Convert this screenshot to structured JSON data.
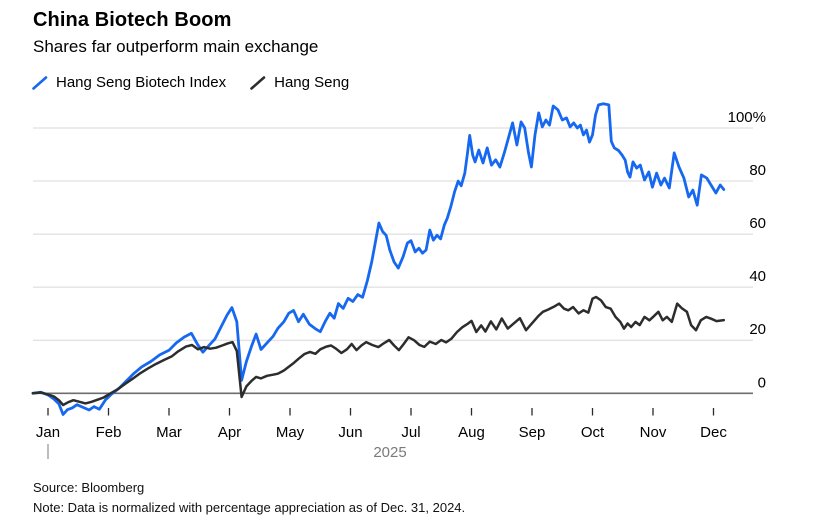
{
  "header": {
    "title": "China Biotech Boom",
    "subtitle": "Shares far outperform main exchange"
  },
  "legend": [
    {
      "label": "Hang Seng Biotech Index",
      "color": "#1668f0"
    },
    {
      "label": "Hang Seng",
      "color": "#2d2d2d"
    }
  ],
  "footer": {
    "source": "Source: Bloomberg",
    "note": "Note: Data is normalized with percentage appreciation as of Dec. 31, 2024."
  },
  "colors": {
    "gridline": "#d8d8d8",
    "zero_line": "#6e6e6e",
    "tick": "#2b2b2b",
    "axis_text": "#000000",
    "year_text": "#7a7a7a",
    "year_tick": "#999999"
  },
  "chart_data": {
    "type": "line",
    "title": "China Biotech Boom",
    "subtitle": "Shares far outperform main exchange",
    "x_unit": "months since Jan 1, 2025 (0 = Jan 1, 11 = Dec 1)",
    "x_tick_labels": [
      "Jan",
      "Feb",
      "Mar",
      "Apr",
      "May",
      "Jun",
      "Jul",
      "Aug",
      "Sep",
      "Oct",
      "Nov",
      "Dec"
    ],
    "year_label": "2025",
    "y_ticks": [
      0,
      20,
      40,
      60,
      80,
      100
    ],
    "y_tick_labels": [
      "0",
      "20",
      "40",
      "60",
      "80",
      "100%"
    ],
    "ylim": [
      -12,
      112
    ],
    "grid": "horizontal",
    "legend_position": "top-left",
    "series": [
      {
        "name": "Hang Seng Biotech Index",
        "color": "#1668f0",
        "points": [
          [
            -0.25,
            0
          ],
          [
            -0.12,
            0.4
          ],
          [
            0,
            -0.6
          ],
          [
            0.1,
            -2.2
          ],
          [
            0.18,
            -4
          ],
          [
            0.25,
            -8
          ],
          [
            0.32,
            -6.2
          ],
          [
            0.4,
            -5.5
          ],
          [
            0.48,
            -4.3
          ],
          [
            0.57,
            -5.2
          ],
          [
            0.68,
            -6.3
          ],
          [
            0.76,
            -5
          ],
          [
            0.85,
            -6
          ],
          [
            0.95,
            -2.5
          ],
          [
            1.05,
            -0.3
          ],
          [
            1.18,
            2
          ],
          [
            1.3,
            4.8
          ],
          [
            1.42,
            7.5
          ],
          [
            1.55,
            10
          ],
          [
            1.7,
            12
          ],
          [
            1.85,
            14.5
          ],
          [
            2.0,
            16.2
          ],
          [
            2.12,
            19
          ],
          [
            2.25,
            21.2
          ],
          [
            2.37,
            22.6
          ],
          [
            2.47,
            18.5
          ],
          [
            2.56,
            15.5
          ],
          [
            2.66,
            18
          ],
          [
            2.76,
            20.5
          ],
          [
            2.86,
            25
          ],
          [
            2.96,
            29.5
          ],
          [
            3.04,
            32.3
          ],
          [
            3.12,
            27
          ],
          [
            3.2,
            4.9
          ],
          [
            3.28,
            12
          ],
          [
            3.36,
            17.5
          ],
          [
            3.44,
            22.3
          ],
          [
            3.52,
            16.5
          ],
          [
            3.62,
            19
          ],
          [
            3.72,
            21.5
          ],
          [
            3.8,
            24.5
          ],
          [
            3.9,
            27
          ],
          [
            3.98,
            30.2
          ],
          [
            4.06,
            31.2
          ],
          [
            4.14,
            27
          ],
          [
            4.22,
            29.8
          ],
          [
            4.32,
            26
          ],
          [
            4.42,
            24.3
          ],
          [
            4.5,
            23.2
          ],
          [
            4.58,
            27
          ],
          [
            4.66,
            30.2
          ],
          [
            4.73,
            28.3
          ],
          [
            4.8,
            33.8
          ],
          [
            4.88,
            32
          ],
          [
            4.96,
            35.8
          ],
          [
            5.04,
            34.6
          ],
          [
            5.12,
            37.2
          ],
          [
            5.2,
            36.2
          ],
          [
            5.28,
            42.5
          ],
          [
            5.35,
            49.5
          ],
          [
            5.42,
            58
          ],
          [
            5.47,
            64.2
          ],
          [
            5.53,
            61
          ],
          [
            5.59,
            59.5
          ],
          [
            5.65,
            54
          ],
          [
            5.72,
            49.5
          ],
          [
            5.79,
            47.2
          ],
          [
            5.87,
            51.5
          ],
          [
            5.94,
            56.6
          ],
          [
            6.0,
            57.5
          ],
          [
            6.07,
            53.3
          ],
          [
            6.13,
            54.7
          ],
          [
            6.19,
            52.8
          ],
          [
            6.25,
            54
          ],
          [
            6.31,
            61.5
          ],
          [
            6.37,
            57.7
          ],
          [
            6.43,
            59.6
          ],
          [
            6.49,
            58.2
          ],
          [
            6.55,
            63.4
          ],
          [
            6.6,
            66
          ],
          [
            6.66,
            70.5
          ],
          [
            6.72,
            76
          ],
          [
            6.78,
            80
          ],
          [
            6.83,
            78.2
          ],
          [
            6.89,
            83
          ],
          [
            6.93,
            90
          ],
          [
            6.97,
            97.2
          ],
          [
            7.02,
            89.8
          ],
          [
            7.06,
            87.2
          ],
          [
            7.12,
            91.7
          ],
          [
            7.19,
            86.8
          ],
          [
            7.26,
            92.5
          ],
          [
            7.33,
            86
          ],
          [
            7.4,
            88
          ],
          [
            7.47,
            85.3
          ],
          [
            7.54,
            90.5
          ],
          [
            7.61,
            96.2
          ],
          [
            7.68,
            101.9
          ],
          [
            7.75,
            93.6
          ],
          [
            7.82,
            102.3
          ],
          [
            7.88,
            100
          ],
          [
            7.94,
            90.9
          ],
          [
            7.99,
            85.3
          ],
          [
            8.05,
            97.4
          ],
          [
            8.11,
            105.7
          ],
          [
            8.17,
            100.4
          ],
          [
            8.23,
            103
          ],
          [
            8.29,
            101.1
          ],
          [
            8.35,
            108.3
          ],
          [
            8.43,
            106.8
          ],
          [
            8.5,
            103
          ],
          [
            8.57,
            103.8
          ],
          [
            8.63,
            100.4
          ],
          [
            8.69,
            101.9
          ],
          [
            8.75,
            100
          ],
          [
            8.8,
            101.1
          ],
          [
            8.85,
            97.4
          ],
          [
            8.9,
            99.2
          ],
          [
            8.95,
            94.7
          ],
          [
            9.0,
            97.4
          ],
          [
            9.05,
            104.9
          ],
          [
            9.1,
            108.7
          ],
          [
            9.18,
            109.1
          ],
          [
            9.27,
            108.7
          ],
          [
            9.31,
            95
          ],
          [
            9.36,
            92.5
          ],
          [
            9.43,
            91.5
          ],
          [
            9.49,
            89.8
          ],
          [
            9.54,
            87.9
          ],
          [
            9.58,
            83.4
          ],
          [
            9.62,
            81.5
          ],
          [
            9.67,
            87.2
          ],
          [
            9.73,
            84.9
          ],
          [
            9.79,
            86
          ],
          [
            9.86,
            80.4
          ],
          [
            9.93,
            83.4
          ],
          [
            9.99,
            77.7
          ],
          [
            10.06,
            83
          ],
          [
            10.13,
            78.5
          ],
          [
            10.19,
            81.1
          ],
          [
            10.27,
            77.4
          ],
          [
            10.35,
            90.6
          ],
          [
            10.43,
            85.3
          ],
          [
            10.51,
            81.1
          ],
          [
            10.59,
            74
          ],
          [
            10.66,
            76.6
          ],
          [
            10.73,
            70.9
          ],
          [
            10.8,
            82.3
          ],
          [
            10.89,
            81.1
          ],
          [
            10.97,
            78.1
          ],
          [
            11.04,
            75.5
          ],
          [
            11.11,
            78.5
          ],
          [
            11.17,
            76.8
          ]
        ]
      },
      {
        "name": "Hang Seng",
        "color": "#2d2d2d",
        "points": [
          [
            -0.25,
            0
          ],
          [
            -0.12,
            0.3
          ],
          [
            0,
            -0.4
          ],
          [
            0.1,
            -1.2
          ],
          [
            0.18,
            -2.6
          ],
          [
            0.25,
            -4.4
          ],
          [
            0.33,
            -3.4
          ],
          [
            0.42,
            -2.6
          ],
          [
            0.52,
            -3.2
          ],
          [
            0.62,
            -3.8
          ],
          [
            0.72,
            -3.2
          ],
          [
            0.82,
            -2.4
          ],
          [
            0.92,
            -1.6
          ],
          [
            1.02,
            -0.2
          ],
          [
            1.15,
            1.5
          ],
          [
            1.28,
            3.6
          ],
          [
            1.4,
            5.5
          ],
          [
            1.52,
            7.5
          ],
          [
            1.65,
            9.3
          ],
          [
            1.78,
            11
          ],
          [
            1.92,
            12.6
          ],
          [
            2.05,
            14
          ],
          [
            2.15,
            15.8
          ],
          [
            2.28,
            17.6
          ],
          [
            2.38,
            18.2
          ],
          [
            2.48,
            16.6
          ],
          [
            2.58,
            17.4
          ],
          [
            2.68,
            16.8
          ],
          [
            2.78,
            17.2
          ],
          [
            2.88,
            18
          ],
          [
            2.97,
            18.8
          ],
          [
            3.05,
            19.3
          ],
          [
            3.12,
            16
          ],
          [
            3.2,
            -1.4
          ],
          [
            3.28,
            2.6
          ],
          [
            3.36,
            4.6
          ],
          [
            3.44,
            6.2
          ],
          [
            3.52,
            5.6
          ],
          [
            3.62,
            6.6
          ],
          [
            3.72,
            7
          ],
          [
            3.8,
            7.4
          ],
          [
            3.9,
            8.6
          ],
          [
            3.98,
            10
          ],
          [
            4.06,
            11.4
          ],
          [
            4.15,
            13.2
          ],
          [
            4.24,
            14.8
          ],
          [
            4.33,
            15.6
          ],
          [
            4.42,
            14.9
          ],
          [
            4.5,
            16.6
          ],
          [
            4.6,
            17.6
          ],
          [
            4.68,
            18
          ],
          [
            4.76,
            16.8
          ],
          [
            4.85,
            15.2
          ],
          [
            4.94,
            16.6
          ],
          [
            5.02,
            18.6
          ],
          [
            5.1,
            16.3
          ],
          [
            5.18,
            18
          ],
          [
            5.26,
            19.3
          ],
          [
            5.36,
            18.2
          ],
          [
            5.46,
            17.4
          ],
          [
            5.56,
            19
          ],
          [
            5.64,
            20.1
          ],
          [
            5.72,
            18
          ],
          [
            5.8,
            16.3
          ],
          [
            5.88,
            18.6
          ],
          [
            5.96,
            21.1
          ],
          [
            6.05,
            20
          ],
          [
            6.14,
            18.2
          ],
          [
            6.22,
            17.5
          ],
          [
            6.31,
            19.5
          ],
          [
            6.41,
            18.6
          ],
          [
            6.5,
            20.1
          ],
          [
            6.58,
            19.2
          ],
          [
            6.67,
            20.6
          ],
          [
            6.76,
            23.1
          ],
          [
            6.85,
            24.9
          ],
          [
            6.93,
            26.1
          ],
          [
            7.0,
            27.3
          ],
          [
            7.08,
            23.1
          ],
          [
            7.16,
            25.6
          ],
          [
            7.23,
            23.3
          ],
          [
            7.32,
            27.1
          ],
          [
            7.41,
            24.1
          ],
          [
            7.5,
            28.2
          ],
          [
            7.6,
            24.4
          ],
          [
            7.7,
            26.4
          ],
          [
            7.8,
            28.3
          ],
          [
            7.9,
            23.8
          ],
          [
            8.0,
            26.4
          ],
          [
            8.1,
            29
          ],
          [
            8.18,
            30.7
          ],
          [
            8.27,
            31.6
          ],
          [
            8.36,
            32.6
          ],
          [
            8.45,
            33.8
          ],
          [
            8.53,
            31.9
          ],
          [
            8.6,
            31.3
          ],
          [
            8.68,
            32.5
          ],
          [
            8.77,
            30.1
          ],
          [
            8.85,
            31.3
          ],
          [
            8.93,
            30.4
          ],
          [
            9.0,
            35.7
          ],
          [
            9.06,
            36.3
          ],
          [
            9.14,
            35
          ],
          [
            9.22,
            32.5
          ],
          [
            9.3,
            31.9
          ],
          [
            9.38,
            28.8
          ],
          [
            9.46,
            26.9
          ],
          [
            9.52,
            24.4
          ],
          [
            9.58,
            26.3
          ],
          [
            9.64,
            25
          ],
          [
            9.71,
            26.9
          ],
          [
            9.78,
            25.7
          ],
          [
            9.86,
            28.8
          ],
          [
            9.94,
            27.5
          ],
          [
            10.01,
            29
          ],
          [
            10.09,
            30.7
          ],
          [
            10.16,
            27.5
          ],
          [
            10.23,
            28.8
          ],
          [
            10.31,
            26.9
          ],
          [
            10.4,
            33.8
          ],
          [
            10.48,
            32
          ],
          [
            10.56,
            30.7
          ],
          [
            10.63,
            25.7
          ],
          [
            10.71,
            23.8
          ],
          [
            10.79,
            27.5
          ],
          [
            10.88,
            28.8
          ],
          [
            10.96,
            28.1
          ],
          [
            11.05,
            27.2
          ],
          [
            11.17,
            27.6
          ]
        ]
      }
    ]
  }
}
